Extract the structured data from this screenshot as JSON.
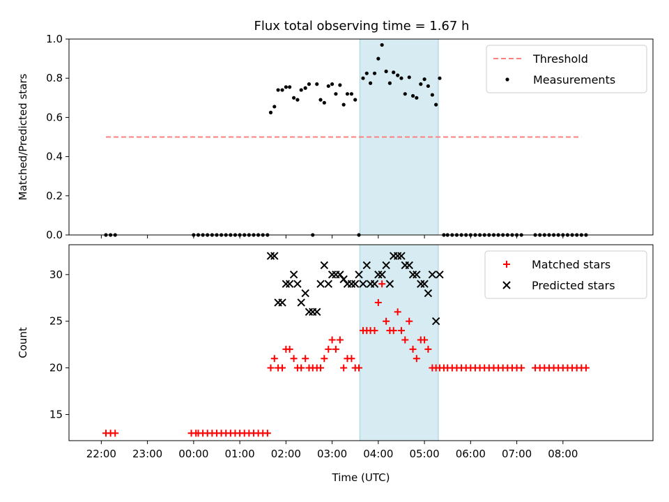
{
  "title": "Flux total observing time = 1.67 h",
  "chart_data": [
    {
      "type": "scatter",
      "ylabel": "Matched/Predicted stars",
      "ylim": [
        0,
        1.0
      ],
      "yticks": [
        0.0,
        0.2,
        0.4,
        0.6,
        0.8,
        1.0
      ],
      "ytick_labels": [
        "0.0",
        "0.2",
        "0.4",
        "0.6",
        "0.8",
        "1.0"
      ],
      "xlim_hours": [
        -2.7,
        9.95
      ],
      "highlight_span_hours": [
        3.6,
        5.3
      ],
      "legend": {
        "placement": "top-right",
        "entries": [
          "Threshold",
          "Measurements"
        ]
      },
      "threshold": {
        "name": "Threshold",
        "value": 0.5,
        "x_range_hours": [
          -1.9,
          8.4
        ],
        "color": "#ff7f7f"
      },
      "measurements": {
        "name": "Measurements",
        "color": "#000000",
        "x": [
          -1.9,
          -1.8,
          -1.7,
          0.0,
          0.1,
          0.2,
          0.3,
          0.4,
          0.5,
          0.6,
          0.7,
          0.8,
          0.9,
          1.0,
          1.1,
          1.2,
          1.3,
          1.4,
          1.5,
          1.6,
          1.67,
          1.75,
          1.83,
          1.92,
          2.0,
          2.08,
          2.17,
          2.25,
          2.33,
          2.42,
          2.5,
          2.58,
          2.67,
          2.75,
          2.83,
          2.92,
          3.0,
          3.08,
          3.17,
          3.25,
          3.33,
          3.42,
          3.5,
          3.58,
          3.67,
          3.75,
          3.83,
          3.92,
          4.0,
          4.08,
          4.17,
          4.25,
          4.33,
          4.42,
          4.5,
          4.58,
          4.67,
          4.75,
          4.83,
          4.92,
          5.0,
          5.08,
          5.17,
          5.25,
          5.33,
          5.42,
          5.5,
          5.6,
          5.7,
          5.8,
          5.9,
          6.0,
          6.1,
          6.2,
          6.3,
          6.4,
          6.5,
          6.6,
          6.7,
          6.8,
          6.9,
          7.0,
          7.1,
          7.4,
          7.5,
          7.6,
          7.7,
          7.8,
          7.9,
          8.0,
          8.1,
          8.2,
          8.3,
          8.4,
          8.5
        ],
        "y": [
          0,
          0,
          0,
          0,
          0,
          0,
          0,
          0,
          0,
          0,
          0,
          0,
          0,
          0,
          0,
          0,
          0,
          0,
          0,
          0,
          0.625,
          0.655,
          0.74,
          0.74,
          0.755,
          0.755,
          0.7,
          0.69,
          0.74,
          0.75,
          0.77,
          0.0,
          0.77,
          0.69,
          0.675,
          0.76,
          0.77,
          0.72,
          0.765,
          0.665,
          0.72,
          0.72,
          0.69,
          0.0,
          0.8,
          0.825,
          0.775,
          0.825,
          0.9,
          0.97,
          0.835,
          0.775,
          0.83,
          0.815,
          0.8,
          0.72,
          0.805,
          0.71,
          0.7,
          0.77,
          0.795,
          0.76,
          0.715,
          0.665,
          0.8,
          0,
          0,
          0,
          0,
          0,
          0,
          0,
          0,
          0,
          0,
          0,
          0,
          0,
          0,
          0,
          0,
          0,
          0,
          0,
          0,
          0,
          0,
          0,
          0,
          0,
          0,
          0,
          0,
          0,
          0
        ]
      }
    },
    {
      "type": "scatter",
      "xlabel": "Time (UTC)",
      "ylabel": "Count",
      "ylim": [
        12.2,
        33.2
      ],
      "yticks": [
        15,
        20,
        25,
        30
      ],
      "ytick_labels": [
        "15",
        "20",
        "25",
        "30"
      ],
      "xlim_hours": [
        -2.7,
        9.95
      ],
      "xticks_hours": [
        -2,
        -1,
        0,
        1,
        2,
        3,
        4,
        5,
        6,
        7,
        8
      ],
      "xtick_labels": [
        "22:00",
        "23:00",
        "00:00",
        "01:00",
        "02:00",
        "03:00",
        "04:00",
        "05:00",
        "06:00",
        "07:00",
        "08:00"
      ],
      "highlight_span_hours": [
        3.6,
        5.3
      ],
      "legend": {
        "placement": "top-right",
        "entries": [
          "Matched stars",
          "Predicted stars"
        ]
      },
      "series": [
        {
          "name": "Matched stars",
          "marker": "plus",
          "color": "#ff0000",
          "x": [
            -1.9,
            -1.8,
            -1.7,
            -0.05,
            0.05,
            0.1,
            0.2,
            0.3,
            0.4,
            0.5,
            0.6,
            0.7,
            0.8,
            0.9,
            1.0,
            1.1,
            1.2,
            1.3,
            1.4,
            1.5,
            1.6,
            1.67,
            1.75,
            1.83,
            1.92,
            2.0,
            2.08,
            2.17,
            2.25,
            2.33,
            2.42,
            2.5,
            2.58,
            2.67,
            2.75,
            2.83,
            2.92,
            3.0,
            3.08,
            3.17,
            3.25,
            3.33,
            3.42,
            3.5,
            3.58,
            3.67,
            3.75,
            3.83,
            3.92,
            4.0,
            4.08,
            4.17,
            4.25,
            4.33,
            4.42,
            4.5,
            4.58,
            4.67,
            4.75,
            4.83,
            4.92,
            5.0,
            5.08,
            5.17,
            5.25,
            5.33,
            5.42,
            5.5,
            5.6,
            5.7,
            5.8,
            5.9,
            6.0,
            6.1,
            6.2,
            6.3,
            6.4,
            6.5,
            6.6,
            6.7,
            6.8,
            6.9,
            7.0,
            7.1,
            7.4,
            7.5,
            7.6,
            7.7,
            7.8,
            7.9,
            8.0,
            8.1,
            8.2,
            8.3,
            8.4,
            8.5
          ],
          "y": [
            13,
            13,
            13,
            13,
            13,
            13,
            13,
            13,
            13,
            13,
            13,
            13,
            13,
            13,
            13,
            13,
            13,
            13,
            13,
            13,
            13,
            20,
            21,
            20,
            20,
            22,
            22,
            21,
            20,
            20,
            21,
            20,
            20,
            20,
            20,
            21,
            22,
            23,
            22,
            23,
            20,
            21,
            21,
            20,
            20,
            24,
            24,
            24,
            24,
            27,
            29,
            25,
            24,
            24,
            26,
            24,
            23,
            25,
            22,
            21,
            23,
            23,
            22,
            20,
            20,
            20,
            20,
            20,
            20,
            20,
            20,
            20,
            20,
            20,
            20,
            20,
            20,
            20,
            20,
            20,
            20,
            20,
            20,
            20,
            20,
            20,
            20,
            20,
            20,
            20,
            20,
            20,
            20,
            20,
            20,
            20
          ]
        },
        {
          "name": "Predicted stars",
          "marker": "x",
          "color": "#000000",
          "x": [
            1.67,
            1.75,
            1.83,
            1.92,
            2.0,
            2.08,
            2.17,
            2.25,
            2.33,
            2.42,
            2.5,
            2.58,
            2.67,
            2.75,
            2.83,
            2.92,
            3.0,
            3.08,
            3.17,
            3.25,
            3.33,
            3.42,
            3.5,
            3.58,
            3.67,
            3.75,
            3.83,
            3.92,
            4.0,
            4.08,
            4.17,
            4.25,
            4.33,
            4.42,
            4.5,
            4.58,
            4.67,
            4.75,
            4.83,
            4.92,
            5.0,
            5.08,
            5.17,
            5.25,
            5.33
          ],
          "y": [
            32,
            32,
            27,
            27,
            29,
            29,
            30,
            29,
            27,
            28,
            26,
            26,
            26,
            29,
            31,
            29,
            30,
            30,
            30,
            29.5,
            29,
            29,
            29,
            30,
            29,
            31,
            29,
            29,
            30,
            30,
            31,
            29,
            32,
            32,
            32,
            31,
            31,
            30,
            30,
            29,
            29,
            28,
            30,
            25,
            30
          ]
        }
      ]
    }
  ]
}
